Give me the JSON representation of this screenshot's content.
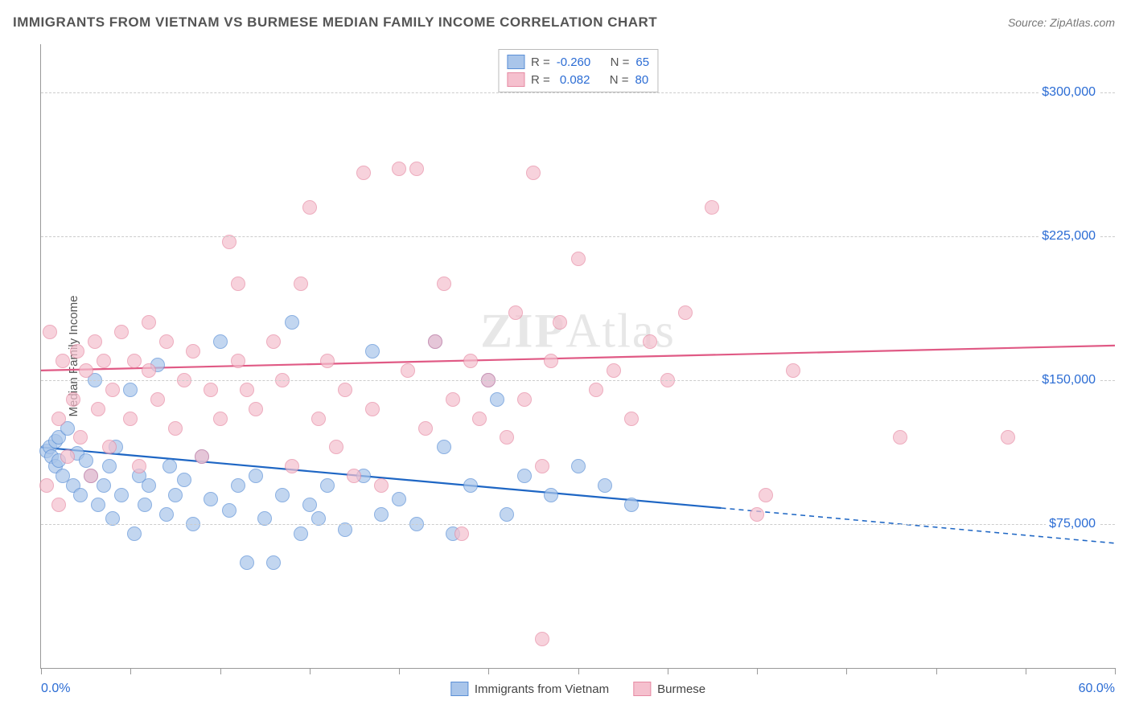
{
  "title": "IMMIGRANTS FROM VIETNAM VS BURMESE MEDIAN FAMILY INCOME CORRELATION CHART",
  "source": "Source: ZipAtlas.com",
  "watermark_a": "ZIP",
  "watermark_b": "Atlas",
  "chart": {
    "type": "scatter",
    "xlim": [
      0,
      60
    ],
    "ylim": [
      0,
      325000
    ],
    "xlabel_min": "0.0%",
    "xlabel_max": "60.0%",
    "ylabel": "Median Family Income",
    "yticks": [
      75000,
      150000,
      225000,
      300000
    ],
    "ytick_labels": [
      "$75,000",
      "$150,000",
      "$225,000",
      "$300,000"
    ],
    "xtick_positions": [
      0,
      5,
      10,
      15,
      20,
      25,
      30,
      35,
      40,
      45,
      50,
      55,
      60
    ],
    "grid_color": "#cccccc",
    "axis_color": "#999999",
    "background_color": "#ffffff",
    "marker_radius": 9,
    "marker_stroke_width": 1.5,
    "marker_fill_opacity": 0.35,
    "series": [
      {
        "name": "Immigrants from Vietnam",
        "color_stroke": "#5a8fd6",
        "color_fill": "#a9c5ea",
        "r_label": "R =",
        "r_value": "-0.260",
        "n_label": "N =",
        "n_value": "65",
        "trend": {
          "y_at_x0": 115000,
          "y_at_x60": 65000,
          "solid_until_x": 38,
          "line_width": 2.2,
          "color": "#1e66c4"
        },
        "points": [
          [
            0.3,
            113000
          ],
          [
            0.5,
            115000
          ],
          [
            0.6,
            110000
          ],
          [
            0.8,
            105000
          ],
          [
            0.8,
            118000
          ],
          [
            1.0,
            108000
          ],
          [
            1.0,
            120000
          ],
          [
            1.2,
            100000
          ],
          [
            1.5,
            125000
          ],
          [
            1.8,
            95000
          ],
          [
            2.0,
            112000
          ],
          [
            2.2,
            90000
          ],
          [
            2.5,
            108000
          ],
          [
            2.8,
            100000
          ],
          [
            3.0,
            150000
          ],
          [
            3.2,
            85000
          ],
          [
            3.5,
            95000
          ],
          [
            3.8,
            105000
          ],
          [
            4.0,
            78000
          ],
          [
            4.2,
            115000
          ],
          [
            4.5,
            90000
          ],
          [
            5.0,
            145000
          ],
          [
            5.2,
            70000
          ],
          [
            5.5,
            100000
          ],
          [
            5.8,
            85000
          ],
          [
            6.0,
            95000
          ],
          [
            6.5,
            158000
          ],
          [
            7.0,
            80000
          ],
          [
            7.2,
            105000
          ],
          [
            7.5,
            90000
          ],
          [
            8.0,
            98000
          ],
          [
            8.5,
            75000
          ],
          [
            9.0,
            110000
          ],
          [
            9.5,
            88000
          ],
          [
            10.0,
            170000
          ],
          [
            10.5,
            82000
          ],
          [
            11.0,
            95000
          ],
          [
            11.5,
            55000
          ],
          [
            12.0,
            100000
          ],
          [
            12.5,
            78000
          ],
          [
            13.0,
            55000
          ],
          [
            13.5,
            90000
          ],
          [
            14.0,
            180000
          ],
          [
            14.5,
            70000
          ],
          [
            15.0,
            85000
          ],
          [
            15.5,
            78000
          ],
          [
            16.0,
            95000
          ],
          [
            17.0,
            72000
          ],
          [
            18.0,
            100000
          ],
          [
            18.5,
            165000
          ],
          [
            19.0,
            80000
          ],
          [
            20.0,
            88000
          ],
          [
            21.0,
            75000
          ],
          [
            22.0,
            170000
          ],
          [
            22.5,
            115000
          ],
          [
            23.0,
            70000
          ],
          [
            24.0,
            95000
          ],
          [
            25.0,
            150000
          ],
          [
            25.5,
            140000
          ],
          [
            26.0,
            80000
          ],
          [
            27.0,
            100000
          ],
          [
            28.5,
            90000
          ],
          [
            30.0,
            105000
          ],
          [
            31.5,
            95000
          ],
          [
            33.0,
            85000
          ]
        ]
      },
      {
        "name": "Burmese",
        "color_stroke": "#e68aa3",
        "color_fill": "#f5c0ce",
        "r_label": "R =",
        "r_value": "0.082",
        "n_label": "N =",
        "n_value": "80",
        "trend": {
          "y_at_x0": 155000,
          "y_at_x60": 168000,
          "solid_until_x": 60,
          "line_width": 2.2,
          "color": "#e05a85"
        },
        "points": [
          [
            0.3,
            95000
          ],
          [
            0.5,
            175000
          ],
          [
            1.0,
            130000
          ],
          [
            1.2,
            160000
          ],
          [
            1.5,
            110000
          ],
          [
            1.8,
            140000
          ],
          [
            2.0,
            165000
          ],
          [
            2.2,
            120000
          ],
          [
            2.5,
            155000
          ],
          [
            2.8,
            100000
          ],
          [
            3.0,
            170000
          ],
          [
            3.2,
            135000
          ],
          [
            3.5,
            160000
          ],
          [
            3.8,
            115000
          ],
          [
            4.0,
            145000
          ],
          [
            4.5,
            175000
          ],
          [
            5.0,
            130000
          ],
          [
            5.2,
            160000
          ],
          [
            5.5,
            105000
          ],
          [
            6.0,
            155000
          ],
          [
            6.5,
            140000
          ],
          [
            7.0,
            170000
          ],
          [
            7.5,
            125000
          ],
          [
            8.0,
            150000
          ],
          [
            8.5,
            165000
          ],
          [
            9.0,
            110000
          ],
          [
            9.5,
            145000
          ],
          [
            10.0,
            130000
          ],
          [
            10.5,
            222000
          ],
          [
            11.0,
            160000
          ],
          [
            11.5,
            145000
          ],
          [
            12.0,
            135000
          ],
          [
            13.0,
            170000
          ],
          [
            13.5,
            150000
          ],
          [
            14.0,
            105000
          ],
          [
            14.5,
            200000
          ],
          [
            15.0,
            240000
          ],
          [
            15.5,
            130000
          ],
          [
            16.0,
            160000
          ],
          [
            16.5,
            115000
          ],
          [
            17.0,
            145000
          ],
          [
            18.0,
            258000
          ],
          [
            18.5,
            135000
          ],
          [
            19.0,
            95000
          ],
          [
            20.0,
            260000
          ],
          [
            20.5,
            155000
          ],
          [
            21.0,
            260000
          ],
          [
            21.5,
            125000
          ],
          [
            22.0,
            170000
          ],
          [
            22.5,
            200000
          ],
          [
            23.0,
            140000
          ],
          [
            23.5,
            70000
          ],
          [
            24.0,
            160000
          ],
          [
            24.5,
            130000
          ],
          [
            25.0,
            150000
          ],
          [
            26.0,
            120000
          ],
          [
            26.5,
            185000
          ],
          [
            27.0,
            140000
          ],
          [
            27.5,
            258000
          ],
          [
            28.0,
            105000
          ],
          [
            28.5,
            160000
          ],
          [
            29.0,
            180000
          ],
          [
            30.0,
            213000
          ],
          [
            31.0,
            145000
          ],
          [
            32.0,
            155000
          ],
          [
            33.0,
            130000
          ],
          [
            34.0,
            170000
          ],
          [
            35.0,
            150000
          ],
          [
            36.0,
            185000
          ],
          [
            37.5,
            240000
          ],
          [
            40.0,
            80000
          ],
          [
            42.0,
            155000
          ],
          [
            40.5,
            90000
          ],
          [
            28.0,
            15000
          ],
          [
            48.0,
            120000
          ],
          [
            54.0,
            120000
          ],
          [
            1.0,
            85000
          ],
          [
            6.0,
            180000
          ],
          [
            11.0,
            200000
          ],
          [
            17.5,
            100000
          ]
        ]
      }
    ]
  }
}
